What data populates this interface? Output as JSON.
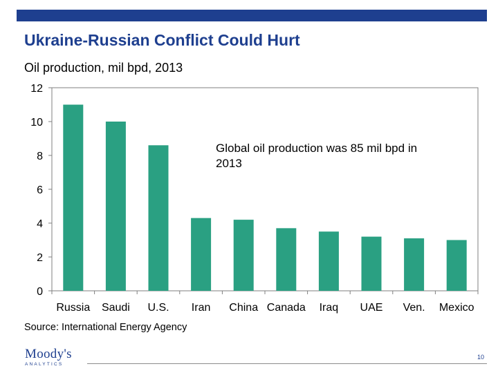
{
  "slide": {
    "title": "Ukraine-Russian Conflict Could Hurt",
    "subtitle": "Oil production, mil bpd, 2013",
    "annotation": "Global oil production was 85 mil bpd in 2013",
    "source": "Source: International Energy Agency",
    "page_number": "10"
  },
  "logo": {
    "name": "Moody's",
    "sub": "ANALYTICS"
  },
  "colors": {
    "accent": "#1e3f8f",
    "bar": "#2aa082"
  },
  "chart_data": {
    "type": "bar",
    "title": "Oil production, mil bpd, 2013",
    "categories": [
      "Russia",
      "Saudi",
      "U.S.",
      "Iran",
      "China",
      "Canada",
      "Iraq",
      "UAE",
      "Ven.",
      "Mexico"
    ],
    "values": [
      11.0,
      10.0,
      8.6,
      4.3,
      4.2,
      3.7,
      3.5,
      3.2,
      3.1,
      3.0
    ],
    "ylim": [
      0,
      12
    ],
    "yticks": [
      "0",
      "2",
      "4",
      "6",
      "8",
      "10",
      "12"
    ],
    "xlabel": "",
    "ylabel": "",
    "grid": false,
    "legend": "none"
  }
}
